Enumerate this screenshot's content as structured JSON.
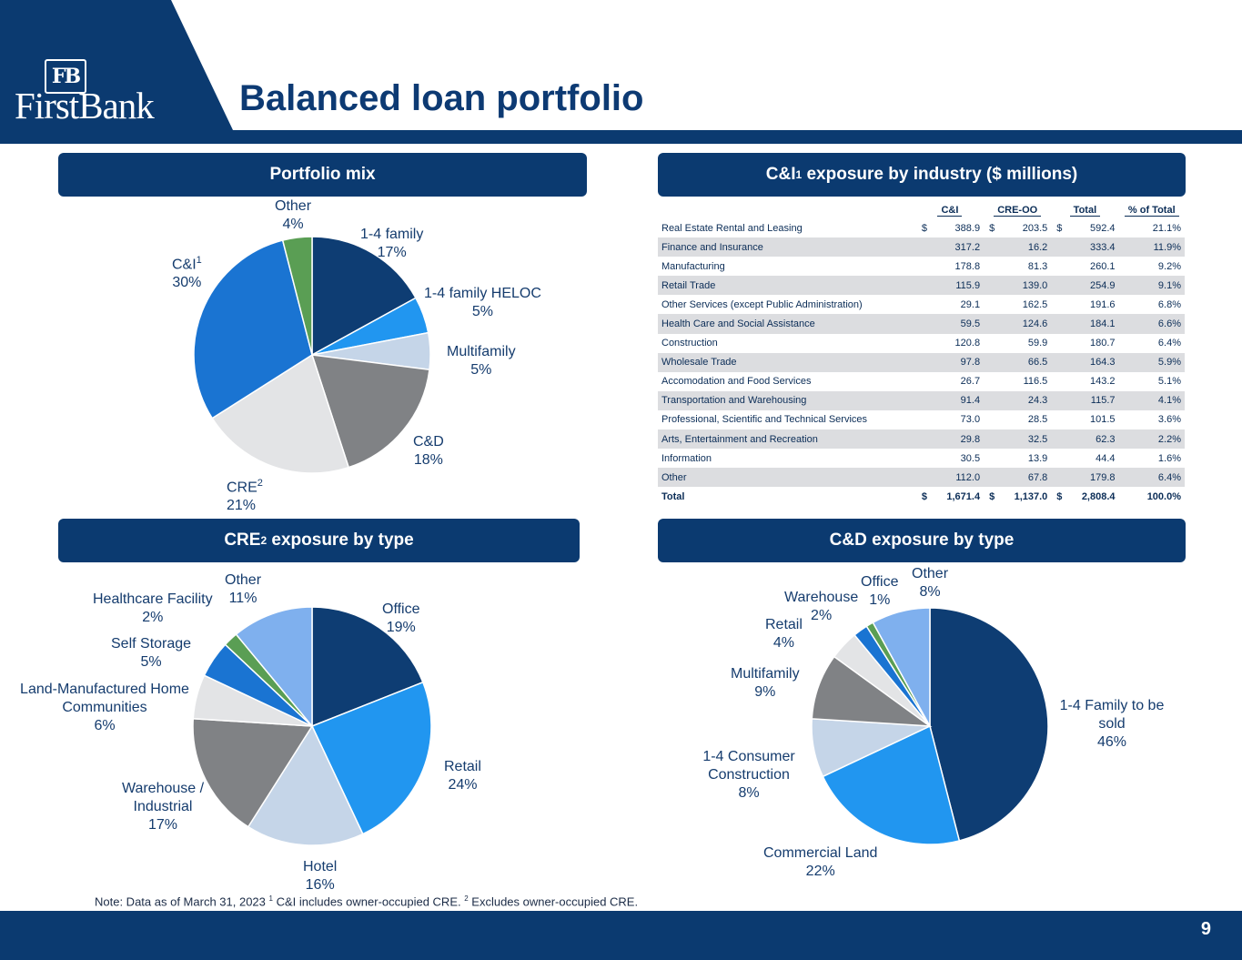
{
  "header": {
    "title": "Balanced loan portfolio",
    "logo_monogram": "FB",
    "logo_text": "FirstBank"
  },
  "panels": {
    "portfolio_mix": "Portfolio mix",
    "cni_pre": "C&I",
    "cni_sup": "1",
    "cni_post": " exposure by industry ($ millions)",
    "cre_pre": "CRE",
    "cre_sup": "2",
    "cre_post": " exposure by type",
    "cd": "C&D exposure by type"
  },
  "colors": {
    "navy": "#0b3a70",
    "dark_blue": "#0e3d73",
    "bright_blue": "#2196f0",
    "light_blue_gray": "#c5d5e8",
    "gray": "#808285",
    "light_gray": "#e3e4e6",
    "medium_blue": "#1a74d2",
    "green": "#5a9e54",
    "sky_blue": "#7fb0ee"
  },
  "chart_data": [
    {
      "type": "pie",
      "title": "Portfolio mix",
      "slices": [
        {
          "label": "1-4 family",
          "value": 17,
          "pct": "17%",
          "color": "#0e3d73"
        },
        {
          "label": "1-4 family HELOC",
          "value": 5,
          "pct": "5%",
          "color": "#2196f0"
        },
        {
          "label": "Multifamily",
          "value": 5,
          "pct": "5%",
          "color": "#c5d5e8"
        },
        {
          "label": "C&D",
          "value": 18,
          "pct": "18%",
          "color": "#808285"
        },
        {
          "label": "CRE",
          "sup": "2",
          "value": 21,
          "pct": "21%",
          "color": "#e3e4e6"
        },
        {
          "label": "C&I",
          "sup": "1",
          "value": 30,
          "pct": "30%",
          "color": "#1a74d2"
        },
        {
          "label": "Other",
          "value": 4,
          "pct": "4%",
          "color": "#5a9e54"
        }
      ]
    },
    {
      "type": "table",
      "title": "C&I exposure by industry ($ millions)",
      "columns": [
        "C&I",
        "CRE-OO",
        "Total",
        "% of Total"
      ],
      "rows": [
        {
          "label": "Real Estate Rental and Leasing",
          "cni": "388.9",
          "creoo": "203.5",
          "total": "592.4",
          "pct": "21.1%",
          "cni_cur": "$",
          "creoo_cur": "$",
          "total_cur": "$"
        },
        {
          "label": "Finance and Insurance",
          "cni": "317.2",
          "creoo": "16.2",
          "total": "333.4",
          "pct": "11.9%"
        },
        {
          "label": "Manufacturing",
          "cni": "178.8",
          "creoo": "81.3",
          "total": "260.1",
          "pct": "9.2%"
        },
        {
          "label": "Retail Trade",
          "cni": "115.9",
          "creoo": "139.0",
          "total": "254.9",
          "pct": "9.1%"
        },
        {
          "label": "Other Services (except Public Administration)",
          "cni": "29.1",
          "creoo": "162.5",
          "total": "191.6",
          "pct": "6.8%"
        },
        {
          "label": "Health Care and Social Assistance",
          "cni": "59.5",
          "creoo": "124.6",
          "total": "184.1",
          "pct": "6.6%"
        },
        {
          "label": "Construction",
          "cni": "120.8",
          "creoo": "59.9",
          "total": "180.7",
          "pct": "6.4%"
        },
        {
          "label": "Wholesale Trade",
          "cni": "97.8",
          "creoo": "66.5",
          "total": "164.3",
          "pct": "5.9%"
        },
        {
          "label": "Accomodation and Food Services",
          "cni": "26.7",
          "creoo": "116.5",
          "total": "143.2",
          "pct": "5.1%"
        },
        {
          "label": "Transportation and Warehousing",
          "cni": "91.4",
          "creoo": "24.3",
          "total": "115.7",
          "pct": "4.1%"
        },
        {
          "label": "Professional, Scientific and Technical Services",
          "cni": "73.0",
          "creoo": "28.5",
          "total": "101.5",
          "pct": "3.6%"
        },
        {
          "label": "Arts, Entertainment and Recreation",
          "cni": "29.8",
          "creoo": "32.5",
          "total": "62.3",
          "pct": "2.2%"
        },
        {
          "label": "Information",
          "cni": "30.5",
          "creoo": "13.9",
          "total": "44.4",
          "pct": "1.6%"
        },
        {
          "label": "Other",
          "cni": "112.0",
          "creoo": "67.8",
          "total": "179.8",
          "pct": "6.4%"
        },
        {
          "label": "Total",
          "cni": "1,671.4",
          "creoo": "1,137.0",
          "total": "2,808.4",
          "pct": "100.0%",
          "cni_cur": "$",
          "creoo_cur": "$",
          "total_cur": "$"
        }
      ]
    },
    {
      "type": "pie",
      "title": "CRE exposure by type",
      "slices": [
        {
          "label": "Office",
          "value": 19,
          "pct": "19%",
          "color": "#0e3d73"
        },
        {
          "label": "Retail",
          "value": 24,
          "pct": "24%",
          "color": "#2196f0"
        },
        {
          "label": "Hotel",
          "value": 16,
          "pct": "16%",
          "color": "#c5d5e8"
        },
        {
          "label": "Warehouse / Industrial",
          "value": 17,
          "pct": "17%",
          "color": "#808285"
        },
        {
          "label": "Land-Manufactured Home Communities",
          "value": 6,
          "pct": "6%",
          "color": "#e3e4e6"
        },
        {
          "label": "Self Storage",
          "value": 5,
          "pct": "5%",
          "color": "#1a74d2"
        },
        {
          "label": "Healthcare Facility",
          "value": 2,
          "pct": "2%",
          "color": "#5a9e54"
        },
        {
          "label": "Other",
          "value": 11,
          "pct": "11%",
          "color": "#7fb0ee"
        }
      ]
    },
    {
      "type": "pie",
      "title": "C&D exposure by type",
      "slices": [
        {
          "label": "1-4 Family to be sold",
          "value": 46,
          "pct": "46%",
          "color": "#0e3d73"
        },
        {
          "label": "Commercial Land",
          "value": 22,
          "pct": "22%",
          "color": "#2196f0"
        },
        {
          "label": "1-4 Consumer Construction",
          "value": 8,
          "pct": "8%",
          "color": "#c5d5e8"
        },
        {
          "label": "Multifamily",
          "value": 9,
          "pct": "9%",
          "color": "#808285"
        },
        {
          "label": "Retail",
          "value": 4,
          "pct": "4%",
          "color": "#e3e4e6"
        },
        {
          "label": "Warehouse",
          "value": 2,
          "pct": "2%",
          "color": "#1a74d2"
        },
        {
          "label": "Office",
          "value": 1,
          "pct": "1%",
          "color": "#5a9e54"
        },
        {
          "label": "Other",
          "value": 8,
          "pct": "8%",
          "color": "#7fb0ee"
        }
      ]
    }
  ],
  "footnote": {
    "a": "Note: Data as of March 31, 2023 ",
    "s1": "1",
    "b": " C&I includes owner-occupied CRE. ",
    "s2": "2",
    "c": " Excludes owner-occupied CRE."
  },
  "page_number": "9"
}
